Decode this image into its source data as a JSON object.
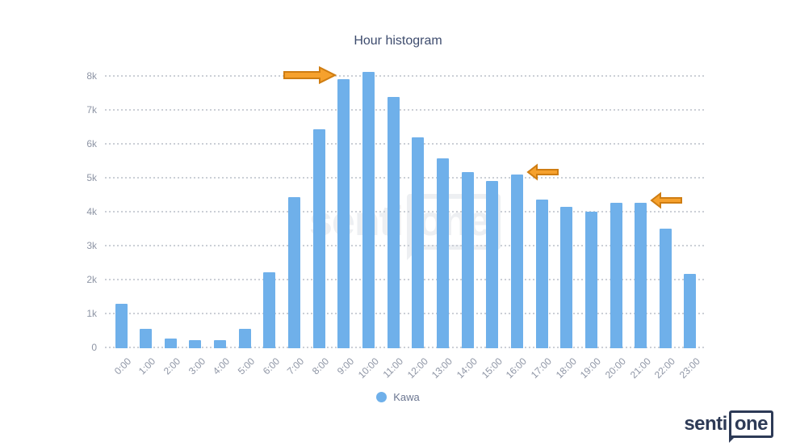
{
  "chart_data": {
    "type": "bar",
    "title": "Hour histogram",
    "xlabel": "",
    "ylabel": "",
    "categories": [
      "0:00",
      "1:00",
      "2:00",
      "3:00",
      "4:00",
      "5:00",
      "6:00",
      "7:00",
      "8:00",
      "9:00",
      "10:00",
      "11:00",
      "12:00",
      "13:00",
      "14:00",
      "15:00",
      "16:00",
      "17:00",
      "18:00",
      "19:00",
      "20:00",
      "21:00",
      "22:00",
      "23:00"
    ],
    "series": [
      {
        "name": "Kawa",
        "values": [
          1300,
          580,
          290,
          230,
          250,
          580,
          2230,
          4460,
          6460,
          7930,
          8150,
          7400,
          6210,
          5590,
          5190,
          4920,
          5120,
          4390,
          4170,
          4020,
          4290,
          4290,
          3530,
          2180
        ]
      }
    ],
    "ylim": [
      0,
      8000
    ],
    "yticks": [
      "0",
      "1k",
      "2k",
      "3k",
      "4k",
      "5k",
      "6k",
      "7k",
      "8k"
    ],
    "grid": "horizontal-dotted",
    "legend_position": "bottom-center",
    "annotations": [
      {
        "type": "block-arrow",
        "direction": "right",
        "points_at": "9:00"
      },
      {
        "type": "block-arrow",
        "direction": "left",
        "points_at": "16:00"
      },
      {
        "type": "block-arrow",
        "direction": "left",
        "points_at": "21:00"
      }
    ]
  },
  "watermark": {
    "senti": "senti",
    "one": "one"
  },
  "logo": {
    "senti": "senti",
    "one": "one"
  },
  "colors": {
    "bar": "#6fb0ea",
    "title": "#3e4c6e",
    "axis_label": "#8e95a5",
    "legend_text": "#6b7691",
    "gridline": "#cbcfd6",
    "arrow_fill": "#f6a12d",
    "arrow_stroke": "#cf7d12",
    "logo_navy": "#2d3a56",
    "watermark": "#edeff2"
  }
}
